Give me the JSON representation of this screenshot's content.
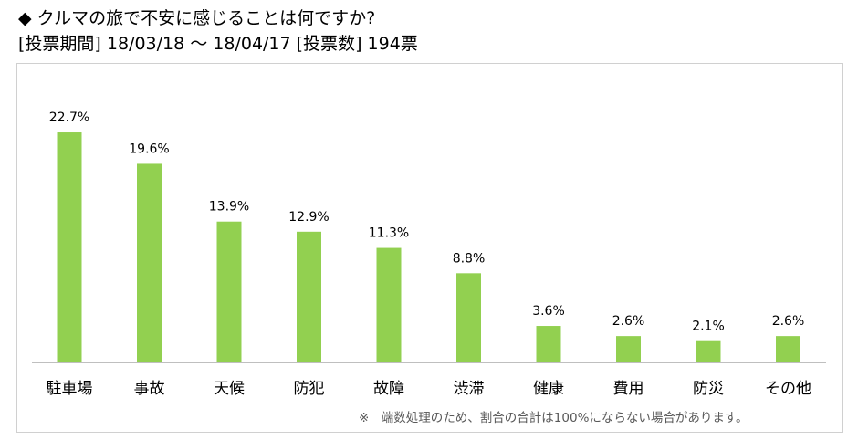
{
  "header": {
    "title": "◆ クルマの旅で不安に感じることは何ですか?",
    "subtitle": "[投票期間] 18/03/18 ～ 18/04/17 [投票数] 194票"
  },
  "footnote": "※　端数処理のため、割合の合計は100%にならない場合があります。",
  "chart_data": {
    "type": "bar",
    "categories": [
      "駐車場",
      "事故",
      "天候",
      "防犯",
      "故障",
      "渋滞",
      "健康",
      "費用",
      "防災",
      "その他"
    ],
    "values": [
      22.7,
      19.6,
      13.9,
      12.9,
      11.3,
      8.8,
      3.6,
      2.6,
      2.1,
      2.6
    ],
    "value_labels": [
      "22.7%",
      "19.6%",
      "13.9%",
      "12.9%",
      "11.3%",
      "8.8%",
      "3.6%",
      "2.6%",
      "2.1%",
      "2.6%"
    ],
    "ylim": [
      0,
      25
    ],
    "grid": false,
    "colors": {
      "bar": "#92d050",
      "axis": "#bfbfbf"
    }
  }
}
